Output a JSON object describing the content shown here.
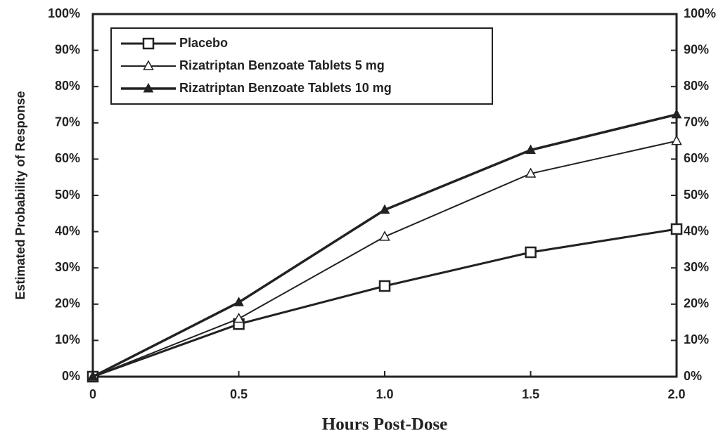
{
  "chart_data": {
    "type": "line",
    "y_label": "Estimated Probability of Response",
    "x_label": "Hours Post-Dose",
    "x": [
      0,
      0.5,
      1,
      1.5,
      2
    ],
    "xlim": [
      0,
      2
    ],
    "xticks": [
      0,
      0.5,
      {
        "value": 1,
        "label": "1.0"
      },
      1.5,
      {
        "value": 2,
        "label": "2.0"
      }
    ],
    "ylim": [
      0,
      100
    ],
    "yticks": [
      {
        "value": 0,
        "label": "0%"
      },
      {
        "value": 10,
        "label": "10%"
      },
      {
        "value": 20,
        "label": "20%"
      },
      {
        "value": 30,
        "label": "30%"
      },
      {
        "value": 40,
        "label": "40%"
      },
      {
        "value": 50,
        "label": "50%"
      },
      {
        "value": 60,
        "label": "60%"
      },
      {
        "value": 70,
        "label": "70%"
      },
      {
        "value": 80,
        "label": "80%"
      },
      {
        "value": 90,
        "label": "90%"
      },
      {
        "value": 100,
        "label": "100%"
      }
    ],
    "y2lim": [
      0,
      100
    ],
    "y2ticks": [
      {
        "value": 0,
        "label": "0%"
      },
      {
        "value": 10,
        "label": "10%"
      },
      {
        "value": 20,
        "label": "20%"
      },
      {
        "value": 30,
        "label": "30%"
      },
      {
        "value": 40,
        "label": "40%"
      },
      {
        "value": 50,
        "label": "50%"
      },
      {
        "value": 60,
        "label": "60%"
      },
      {
        "value": 70,
        "label": "70%"
      },
      {
        "value": 80,
        "label": "80%"
      },
      {
        "value": 90,
        "label": "90%"
      },
      {
        "value": 100,
        "label": "100%"
      }
    ],
    "series": [
      {
        "name": "Placebo",
        "color": "#222222",
        "marker": "square-open",
        "values": [
          0,
          14.5,
          25,
          34.3,
          40.7
        ]
      },
      {
        "name": "Rizatriptan Benzoate Tablets 5 mg",
        "color": "#222222",
        "marker": "triangle-open",
        "values": [
          0,
          16,
          38.6,
          56,
          65
        ]
      },
      {
        "name": "Rizatriptan Benzoate Tablets 10 mg",
        "color": "#222222",
        "marker": "triangle-filled",
        "values": [
          0,
          20.5,
          46,
          62.5,
          72.3
        ]
      }
    ],
    "legend": "upper-left"
  }
}
